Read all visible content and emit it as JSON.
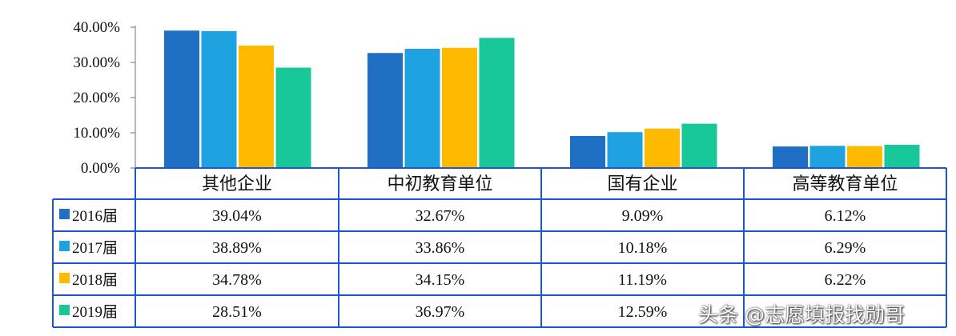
{
  "chart_data": {
    "type": "bar",
    "categories": [
      "其他企业",
      "中初教育单位",
      "国有企业",
      "高等教育单位"
    ],
    "series": [
      {
        "name": "2016届",
        "values": [
          39.04,
          32.67,
          9.09,
          6.12
        ],
        "color": "#1f6fc5",
        "labels": [
          "39.04%",
          "32.67%",
          "9.09%",
          "6.12%"
        ]
      },
      {
        "name": "2017届",
        "values": [
          38.89,
          33.86,
          10.18,
          6.29
        ],
        "color": "#1fa2e0",
        "labels": [
          "38.89%",
          "33.86%",
          "10.18%",
          "6.29%"
        ]
      },
      {
        "name": "2018届",
        "values": [
          34.78,
          34.15,
          11.19,
          6.22
        ],
        "color": "#ffba00",
        "labels": [
          "34.78%",
          "34.15%",
          "11.19%",
          "6.22%"
        ]
      },
      {
        "name": "2019届",
        "values": [
          28.51,
          36.97,
          12.59,
          6.59
        ],
        "color": "#19c898",
        "labels": [
          "28.51%",
          "36.97%",
          "12.59%",
          ""
        ]
      }
    ],
    "ylim": [
      0,
      40
    ],
    "yticks": [
      "0.00%",
      "10.00%",
      "20.00%",
      "30.00%",
      "40.00%"
    ],
    "gridlines": false,
    "legend": "data table below chart"
  },
  "watermark": "头条 @志愿填报找勋哥",
  "colors": {
    "border": "#1a56d6",
    "axis": "#9aa0a6"
  }
}
